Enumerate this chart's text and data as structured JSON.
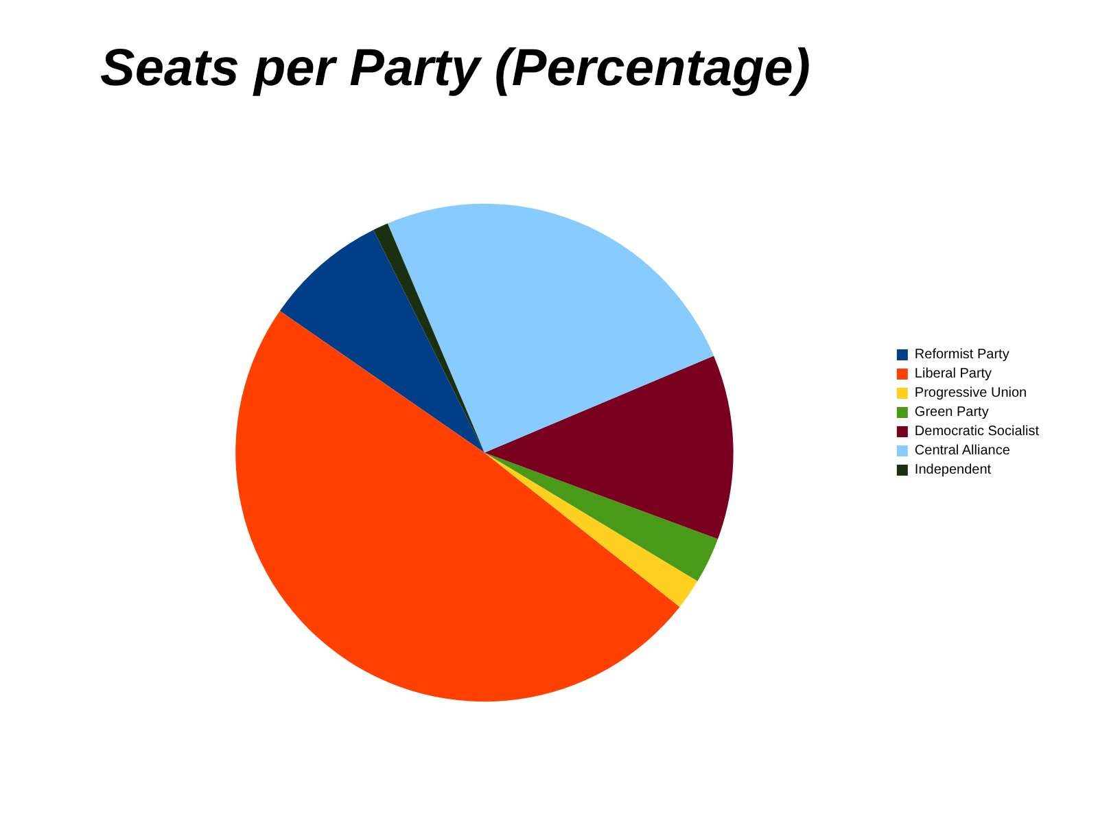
{
  "chart_data": {
    "type": "pie",
    "title": "Seats per Party (Percentage)",
    "categories": [
      "Reformist Party",
      "Liberal Party",
      "Progressive Union",
      "Green Party",
      "Democratic Socialist",
      "Central Alliance",
      "Independent"
    ],
    "values": [
      8,
      49,
      2,
      3,
      12,
      25,
      1
    ],
    "colors": [
      "#003f87",
      "#ff4000",
      "#ffd020",
      "#4a9a1a",
      "#7a0020",
      "#88ccff",
      "#1a3010"
    ],
    "legend": "right"
  }
}
